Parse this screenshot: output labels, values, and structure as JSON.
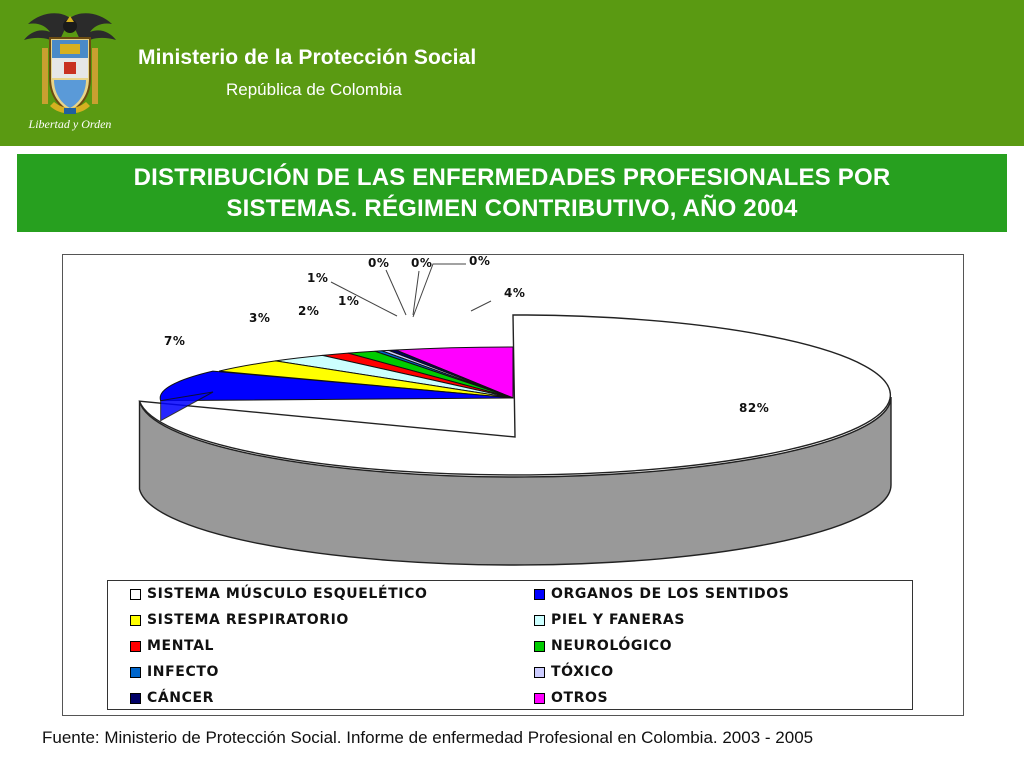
{
  "header": {
    "ministry": "Ministerio de la Protección Social",
    "republic": "República de Colombia",
    "motto": "Libertad y Orden",
    "background": "#5a9a12"
  },
  "title": {
    "line1": "DISTRIBUCIÓN DE LAS ENFERMEDADES PROFESIONALES POR",
    "line2": "SISTEMAS. RÉGIMEN CONTRIBUTIVO, AÑO 2004",
    "background": "#27a01f"
  },
  "chart_data": {
    "type": "pie",
    "style": "3d-exploded",
    "legend_position": "bottom",
    "series": [
      {
        "name": "SISTEMA MÚSCULO ESQUELÉTICO",
        "value": 82,
        "label": "82%",
        "color": "#ffffff"
      },
      {
        "name": "OTROS",
        "value": 4,
        "label": "4%",
        "color": "#ff00ff"
      },
      {
        "name": "CÁNCER",
        "value": 0,
        "label": "0%",
        "color": "#000066"
      },
      {
        "name": "TÓXICO",
        "value": 0,
        "label": "0%",
        "color": "#ccccff"
      },
      {
        "name": "INFECTO",
        "value": 0,
        "label": "0%",
        "color": "#0066cc"
      },
      {
        "name": "NEUROLÓGICO",
        "value": 1,
        "label": "1%",
        "color": "#00cc00"
      },
      {
        "name": "MENTAL",
        "value": 1,
        "label": "1%",
        "color": "#ff0000"
      },
      {
        "name": "PIEL Y FANERAS",
        "value": 2,
        "label": "2%",
        "color": "#ccffff"
      },
      {
        "name": "SISTEMA RESPIRATORIO",
        "value": 3,
        "label": "3%",
        "color": "#ffff00"
      },
      {
        "name": "ORGANOS DE LOS SENTIDOS",
        "value": 7,
        "label": "7%",
        "color": "#0000ff"
      }
    ],
    "legend_order": [
      "SISTEMA MÚSCULO ESQUELÉTICO",
      "ORGANOS DE LOS SENTIDOS",
      "SISTEMA RESPIRATORIO",
      "PIEL Y FANERAS",
      "MENTAL",
      "NEUROLÓGICO",
      "INFECTO",
      "TÓXICO",
      "CÁNCER",
      "OTROS"
    ]
  },
  "source": "Fuente: Ministerio de Protección Social. Informe de enfermedad Profesional en Colombia. 2003 - 2005"
}
